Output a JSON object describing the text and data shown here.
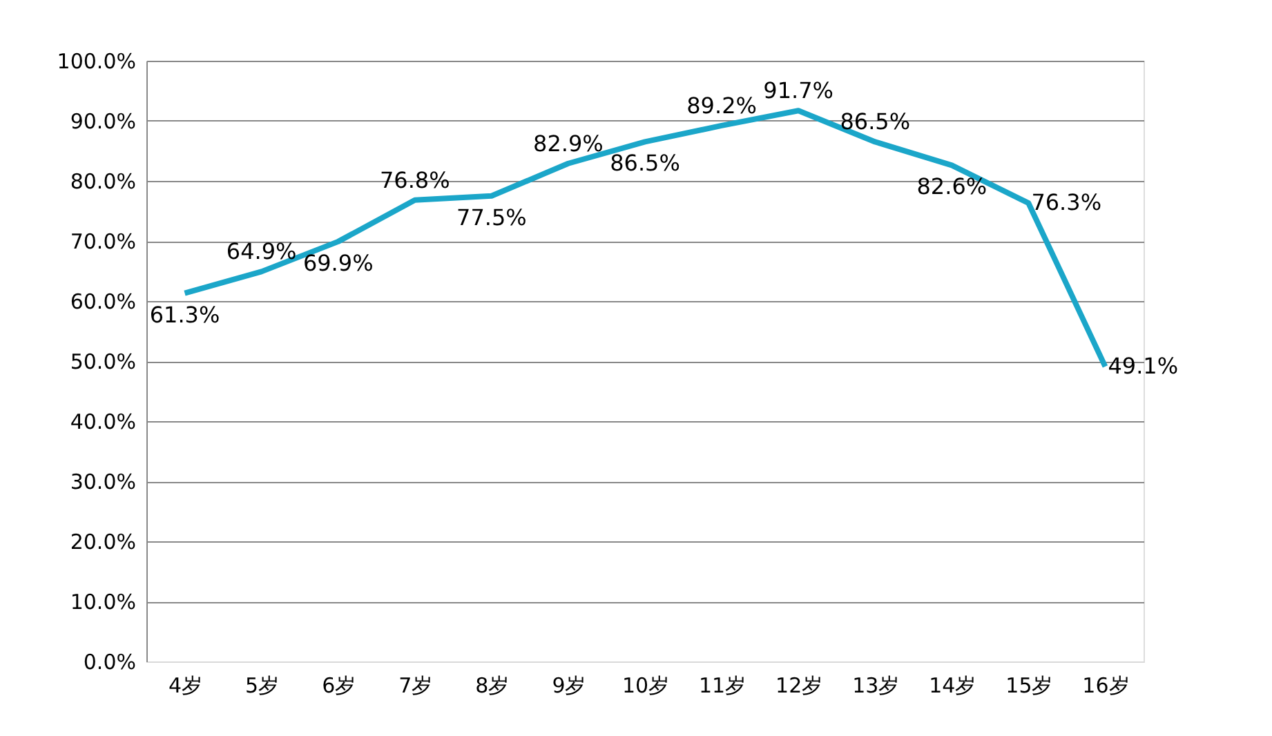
{
  "chart_data": {
    "type": "line",
    "categories": [
      "4岁",
      "5岁",
      "6岁",
      "7岁",
      "8岁",
      "9岁",
      "10岁",
      "11岁",
      "12岁",
      "13岁",
      "14岁",
      "15岁",
      "16岁"
    ],
    "series": [
      {
        "color": "#1ba6c9",
        "values": [
          61.3,
          64.9,
          69.9,
          76.8,
          77.5,
          82.9,
          86.5,
          89.2,
          91.7,
          86.5,
          82.6,
          76.3,
          49.1
        ],
        "value_labels": [
          "61.3%",
          "64.9%",
          "69.9%",
          "76.8%",
          "77.5%",
          "82.9%",
          "86.5%",
          "89.2%",
          "91.7%",
          "86.5%",
          "82.6%",
          "76.3%",
          "49.1%"
        ]
      }
    ],
    "ylim": [
      0,
      100
    ],
    "yticks": [
      {
        "value": 0,
        "label": "0.0%"
      },
      {
        "value": 10,
        "label": "10.0%"
      },
      {
        "value": 20,
        "label": "20.0%"
      },
      {
        "value": 30,
        "label": "30.0%"
      },
      {
        "value": 40,
        "label": "40.0%"
      },
      {
        "value": 50,
        "label": "50.0%"
      },
      {
        "value": 60,
        "label": "60.0%"
      },
      {
        "value": 70,
        "label": "70.0%"
      },
      {
        "value": 80,
        "label": "80.0%"
      },
      {
        "value": 90,
        "label": "90.0%"
      },
      {
        "value": 100,
        "label": "100.0%"
      }
    ],
    "grid": "y",
    "marker": "none",
    "line_style": "solid"
  }
}
